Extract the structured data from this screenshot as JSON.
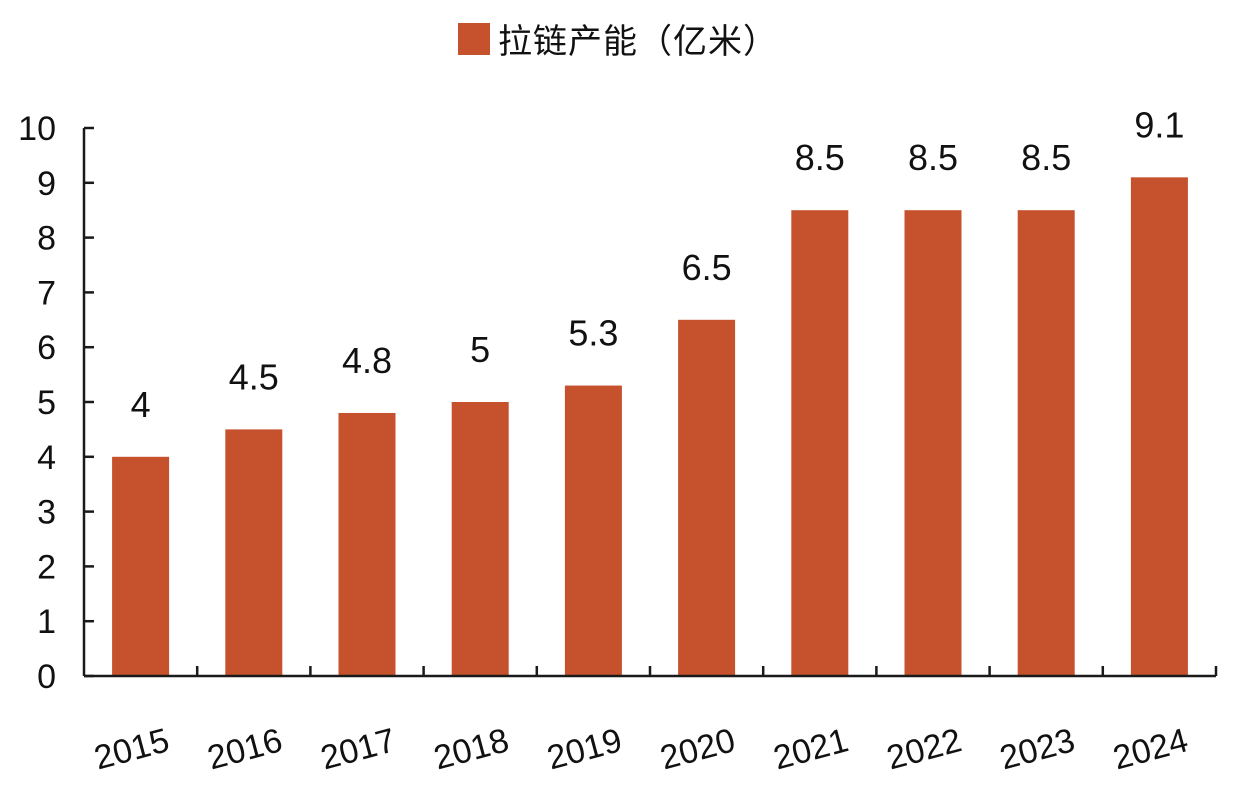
{
  "colors": {
    "bar": "#c5522d",
    "axis": "#1a1a1a",
    "text": "#111111",
    "background": "#ffffff"
  },
  "chart_data": {
    "type": "bar",
    "categories": [
      "2015",
      "2016",
      "2017",
      "2018",
      "2019",
      "2020",
      "2021",
      "2022",
      "2023",
      "2024"
    ],
    "series": [
      {
        "name": "拉链产能（亿米）",
        "values": [
          4,
          4.5,
          4.8,
          5,
          5.3,
          6.5,
          8.5,
          8.5,
          8.5,
          9.1
        ]
      }
    ],
    "data_labels": [
      "4",
      "4.5",
      "4.8",
      "5",
      "5.3",
      "6.5",
      "8.5",
      "8.5",
      "8.5",
      "9.1"
    ],
    "yticks": [
      0,
      1,
      2,
      3,
      4,
      5,
      6,
      7,
      8,
      9,
      10
    ],
    "ylim": [
      0,
      10
    ],
    "title": "",
    "xlabel": "",
    "ylabel": "",
    "legend": "top-center",
    "grid": false
  }
}
